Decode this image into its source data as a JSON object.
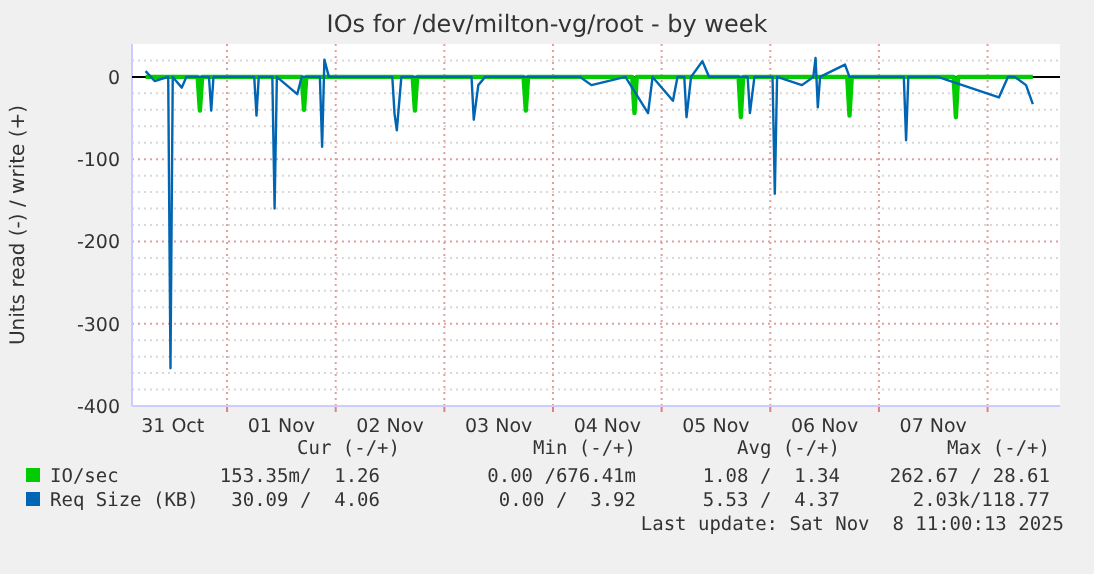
{
  "chart_data": {
    "type": "line",
    "title": "IOs for /dev/milton-vg/root - by week",
    "ylabel": "Units read (-) / write (+)",
    "xlim": [
      "2025-10-31T03:00",
      "2025-11-08T16:00"
    ],
    "xticks": [
      {
        "value": "2025-11-01T00:00",
        "label": null
      },
      {
        "value": "2025-11-02T00:00",
        "label": null
      },
      {
        "value": "2025-11-03T00:00",
        "label": null
      },
      {
        "value": "2025-11-04T00:00",
        "label": null
      },
      {
        "value": "2025-11-05T00:00",
        "label": null
      },
      {
        "value": "2025-11-06T00:00",
        "label": null
      },
      {
        "value": "2025-11-07T00:00",
        "label": null
      },
      {
        "value": "2025-11-08T00:00",
        "label": null
      },
      {
        "value": "2025-10-31T12:00",
        "label": "31 Oct"
      },
      {
        "value": "2025-11-01T12:00",
        "label": "01 Nov"
      },
      {
        "value": "2025-11-02T12:00",
        "label": "02 Nov"
      },
      {
        "value": "2025-11-03T12:00",
        "label": "03 Nov"
      },
      {
        "value": "2025-11-04T12:00",
        "label": "04 Nov"
      },
      {
        "value": "2025-11-05T12:00",
        "label": "05 Nov"
      },
      {
        "value": "2025-11-06T12:00",
        "label": "06 Nov"
      },
      {
        "value": "2025-11-07T12:00",
        "label": "07 Nov"
      }
    ],
    "ylim": [
      -400,
      40
    ],
    "yticks": [
      -400,
      {
        "value": -380,
        "label": null
      },
      {
        "value": -360,
        "label": null
      },
      {
        "value": -340,
        "label": null
      },
      {
        "value": -320,
        "label": null
      },
      -300,
      {
        "value": -280,
        "label": null
      },
      {
        "value": -260,
        "label": null
      },
      {
        "value": -240,
        "label": null
      },
      {
        "value": -220,
        "label": null
      },
      -200,
      {
        "value": -180,
        "label": null
      },
      {
        "value": -160,
        "label": null
      },
      {
        "value": -140,
        "label": null
      },
      {
        "value": -120,
        "label": null
      },
      -100,
      {
        "value": -80,
        "label": null
      },
      {
        "value": -60,
        "label": null
      },
      {
        "value": -40,
        "label": null
      },
      {
        "value": -20,
        "label": null
      },
      0,
      {
        "value": 20,
        "label": null
      }
    ],
    "grid": true,
    "legend": "bottom",
    "line_style": "solid",
    "ref_lines": [
      {
        "axis": "y",
        "value": 0,
        "color": "#000000"
      }
    ],
    "series": [
      {
        "name": "IO/sec",
        "color": "#00cc00",
        "x": [
          "2025-10-31T06:00",
          "2025-10-31T17:30",
          "2025-10-31T18:00",
          "2025-10-31T18:30",
          "2025-11-01T16:30",
          "2025-11-01T17:00",
          "2025-11-01T17:30",
          "2025-11-02T17:00",
          "2025-11-02T17:30",
          "2025-11-02T18:00",
          "2025-11-03T17:30",
          "2025-11-03T18:00",
          "2025-11-03T18:30",
          "2025-11-04T17:30",
          "2025-11-04T18:00",
          "2025-11-04T18:30",
          "2025-11-05T17:00",
          "2025-11-05T17:30",
          "2025-11-05T18:00",
          "2025-11-06T17:00",
          "2025-11-06T17:30",
          "2025-11-06T18:00",
          "2025-11-07T16:30",
          "2025-11-07T17:00",
          "2025-11-07T17:30",
          "2025-11-08T10:00"
        ],
        "values": [
          0,
          0,
          -41,
          0,
          0,
          -40,
          0,
          0,
          -41,
          0,
          0,
          -41,
          0,
          0,
          -44,
          0,
          0,
          -49,
          0,
          0,
          -47,
          0,
          0,
          -49,
          0,
          0
        ]
      },
      {
        "name": "Req Size (KB)",
        "color": "#0066b3",
        "x": [
          "2025-10-31T06:00",
          "2025-10-31T08:00",
          "2025-10-31T11:00",
          "2025-10-31T11:30",
          "2025-10-31T12:00",
          "2025-10-31T14:00",
          "2025-10-31T15:00",
          "2025-10-31T20:00",
          "2025-10-31T20:30",
          "2025-10-31T21:00",
          "2025-11-01T02:00",
          "2025-11-01T06:00",
          "2025-11-01T06:30",
          "2025-11-01T07:00",
          "2025-11-01T10:00",
          "2025-11-01T10:30",
          "2025-11-01T11:00",
          "2025-11-01T15:30",
          "2025-11-01T16:30",
          "2025-11-01T20:30",
          "2025-11-01T21:00",
          "2025-11-01T21:30",
          "2025-11-01T22:30",
          "2025-11-02T07:00",
          "2025-11-02T12:30",
          "2025-11-02T13:00",
          "2025-11-02T13:30",
          "2025-11-02T14:30",
          "2025-11-02T21:00",
          "2025-11-03T06:00",
          "2025-11-03T06:30",
          "2025-11-03T07:30",
          "2025-11-03T09:00",
          "2025-11-04T06:00",
          "2025-11-04T08:30",
          "2025-11-04T16:00",
          "2025-11-04T21:00",
          "2025-11-04T22:00",
          "2025-11-05T02:30",
          "2025-11-05T03:30",
          "2025-11-05T05:00",
          "2025-11-05T05:30",
          "2025-11-05T06:30",
          "2025-11-05T09:00",
          "2025-11-05T10:30",
          "2025-11-05T19:00",
          "2025-11-05T19:30",
          "2025-11-05T20:30",
          "2025-11-06T00:30",
          "2025-11-06T01:00",
          "2025-11-06T01:30",
          "2025-11-06T07:00",
          "2025-11-06T09:30",
          "2025-11-06T10:00",
          "2025-11-06T10:30",
          "2025-11-06T11:00",
          "2025-11-06T16:30",
          "2025-11-06T17:30",
          "2025-11-07T05:30",
          "2025-11-07T06:00",
          "2025-11-07T06:30",
          "2025-11-07T13:00",
          "2025-11-08T02:30",
          "2025-11-08T04:30",
          "2025-11-08T06:00",
          "2025-11-08T08:30",
          "2025-11-08T10:00"
        ],
        "values": [
          7,
          -5,
          0,
          -354,
          0,
          -13,
          0,
          0,
          -41,
          0,
          0,
          0,
          -47,
          0,
          0,
          -160,
          0,
          -21,
          0,
          0,
          -85,
          21,
          0,
          0,
          0,
          -45,
          -65,
          0,
          0,
          0,
          -52,
          -10,
          0,
          0,
          -10,
          0,
          -44,
          0,
          -29,
          0,
          0,
          -49,
          0,
          19,
          0,
          0,
          -44,
          0,
          0,
          -142,
          0,
          -10,
          0,
          23,
          -37,
          0,
          15,
          0,
          0,
          -77,
          0,
          0,
          -25,
          0,
          0,
          -10,
          -33
        ]
      }
    ],
    "annotations": [
      "Cur (-/+)",
      "Min (-/+)",
      "Avg (-/+)",
      "Max (-/+)",
      "153.35m/  1.26",
      "0.00 /676.41m",
      "1.08 /  1.34",
      "262.67 / 28.61",
      "30.09 /  4.06",
      "0.00 /  3.92",
      "5.53 /  4.37",
      "2.03k/118.77",
      "Last update: Sat Nov  8 11:00:13 2025"
    ]
  }
}
